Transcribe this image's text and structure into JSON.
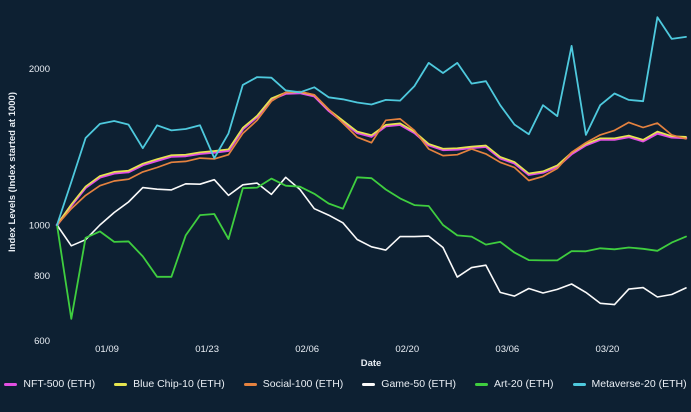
{
  "chart_data": {
    "type": "line",
    "title": "",
    "xlabel": "Date",
    "ylabel": "Index Levels (Index started at 1000)",
    "y_scale": "log",
    "grid": false,
    "legend_position": "bottom",
    "background": "#0d2032",
    "text_color": "#e9eef4",
    "ylim": [
      560,
      2700
    ],
    "y_ticks": [
      "600",
      "800",
      "1000",
      "2000"
    ],
    "x_ticks": [
      {
        "day": 7,
        "label": "01/09"
      },
      {
        "day": 21,
        "label": "01/23"
      },
      {
        "day": 35,
        "label": "02/06"
      },
      {
        "day": 49,
        "label": "02/20"
      },
      {
        "day": 63,
        "label": "03/06"
      },
      {
        "day": 77,
        "label": "03/20"
      }
    ],
    "x_unit": "days from first data point (daily index data, 2-day sampling)",
    "x_max_day": 88,
    "x": [
      0,
      2,
      4,
      6,
      8,
      10,
      12,
      14,
      16,
      18,
      20,
      22,
      24,
      26,
      28,
      30,
      32,
      34,
      36,
      38,
      40,
      42,
      44,
      46,
      48,
      50,
      52,
      54,
      56,
      58,
      60,
      62,
      64,
      66,
      68,
      70,
      72,
      74,
      76,
      78,
      80,
      82,
      84,
      86,
      88
    ],
    "series": [
      {
        "name": "NFT-500 (ETH)",
        "color": "#e24fe2",
        "width": 2.6,
        "values": [
          1000,
          1090,
          1180,
          1235,
          1258,
          1265,
          1305,
          1330,
          1355,
          1358,
          1372,
          1380,
          1390,
          1530,
          1615,
          1745,
          1790,
          1795,
          1770,
          1660,
          1580,
          1505,
          1480,
          1550,
          1560,
          1505,
          1425,
          1395,
          1398,
          1408,
          1415,
          1345,
          1315,
          1250,
          1262,
          1295,
          1370,
          1425,
          1460,
          1460,
          1478,
          1450,
          1500,
          1475,
          1470
        ]
      },
      {
        "name": "Blue Chip-10 (ETH)",
        "color": "#e5e44f",
        "width": 1.7,
        "values": [
          1000,
          1095,
          1186,
          1242,
          1265,
          1272,
          1312,
          1338,
          1362,
          1365,
          1380,
          1388,
          1398,
          1538,
          1622,
          1752,
          1798,
          1802,
          1778,
          1668,
          1588,
          1512,
          1488,
          1558,
          1568,
          1512,
          1432,
          1402,
          1405,
          1415,
          1422,
          1352,
          1322,
          1256,
          1268,
          1302,
          1378,
          1432,
          1468,
          1468,
          1486,
          1458,
          1512,
          1482,
          1478
        ]
      },
      {
        "name": "Social-100 (ETH)",
        "color": "#e5823f",
        "width": 1.7,
        "values": [
          1000,
          1075,
          1140,
          1190,
          1215,
          1225,
          1265,
          1290,
          1320,
          1325,
          1345,
          1340,
          1365,
          1500,
          1590,
          1730,
          1800,
          1805,
          1780,
          1670,
          1570,
          1475,
          1440,
          1590,
          1600,
          1520,
          1400,
          1360,
          1365,
          1400,
          1370,
          1320,
          1290,
          1218,
          1240,
          1285,
          1380,
          1440,
          1490,
          1520,
          1575,
          1540,
          1570,
          1490,
          1465
        ]
      },
      {
        "name": "Game-50 (ETH)",
        "color": "#fafafa",
        "width": 1.6,
        "values": [
          1000,
          912,
          937,
          1000,
          1057,
          1107,
          1180,
          1172,
          1168,
          1200,
          1198,
          1222,
          1140,
          1195,
          1204,
          1145,
          1235,
          1170,
          1075,
          1045,
          1010,
          938,
          908,
          895,
          950,
          950,
          952,
          905,
          794,
          828,
          837,
          742,
          730,
          755,
          740,
          752,
          770,
          742,
          707,
          703,
          753,
          758,
          727,
          735,
          757
        ]
      },
      {
        "name": "Art-20 (ETH)",
        "color": "#3fce3f",
        "width": 1.8,
        "values": [
          1000,
          660,
          945,
          972,
          928,
          930,
          870,
          795,
          795,
          955,
          1045,
          1050,
          940,
          1177,
          1180,
          1228,
          1190,
          1185,
          1148,
          1100,
          1075,
          1235,
          1230,
          1170,
          1125,
          1092,
          1088,
          1000,
          955,
          950,
          917,
          928,
          885,
          856,
          855,
          855,
          891,
          890,
          902,
          898,
          905,
          900,
          892,
          925,
          950
        ]
      },
      {
        "name": "Metaverse-20 (ETH)",
        "color": "#4ec9dd",
        "width": 1.8,
        "values": [
          1000,
          1210,
          1470,
          1565,
          1585,
          1560,
          1405,
          1555,
          1520,
          1530,
          1555,
          1345,
          1500,
          1860,
          1925,
          1920,
          1815,
          1800,
          1840,
          1760,
          1745,
          1720,
          1705,
          1740,
          1735,
          1850,
          2050,
          1960,
          2050,
          1870,
          1890,
          1700,
          1560,
          1495,
          1700,
          1620,
          2210,
          1490,
          1700,
          1790,
          1740,
          1730,
          2510,
          2280,
          2300
        ]
      }
    ]
  }
}
